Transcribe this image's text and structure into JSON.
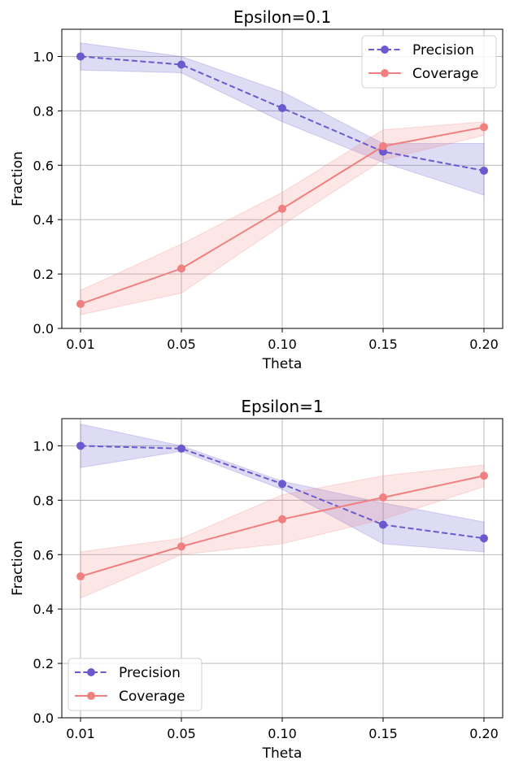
{
  "chart_data": [
    {
      "type": "line",
      "title": "Epsilon=0.1",
      "xlabel": "Theta",
      "ylabel": "Fraction",
      "categories": [
        "0.01",
        "0.05",
        "0.10",
        "0.15",
        "0.20"
      ],
      "ylim": [
        0,
        1.1
      ],
      "yticks": [
        "0.0",
        "0.2",
        "0.4",
        "0.6",
        "0.8",
        "1.0"
      ],
      "grid": true,
      "legend_position": "top-right",
      "series": [
        {
          "name": "Precision",
          "color": "#6a5acd",
          "style": "dashed",
          "values": [
            1.0,
            0.97,
            0.81,
            0.65,
            0.58
          ],
          "lower": [
            0.95,
            0.94,
            0.76,
            0.61,
            0.49
          ],
          "upper": [
            1.05,
            1.0,
            0.87,
            0.68,
            0.68
          ]
        },
        {
          "name": "Coverage",
          "color": "#f08080",
          "style": "solid",
          "values": [
            0.09,
            0.22,
            0.44,
            0.67,
            0.74
          ],
          "lower": [
            0.05,
            0.13,
            0.38,
            0.62,
            0.71
          ],
          "upper": [
            0.14,
            0.31,
            0.5,
            0.73,
            0.76
          ]
        }
      ]
    },
    {
      "type": "line",
      "title": "Epsilon=1",
      "xlabel": "Theta",
      "ylabel": "Fraction",
      "categories": [
        "0.01",
        "0.05",
        "0.10",
        "0.15",
        "0.20"
      ],
      "ylim": [
        0,
        1.1
      ],
      "yticks": [
        "0.0",
        "0.2",
        "0.4",
        "0.6",
        "0.8",
        "1.0"
      ],
      "grid": true,
      "legend_position": "bottom-left",
      "series": [
        {
          "name": "Precision",
          "color": "#6a5acd",
          "style": "dashed",
          "values": [
            1.0,
            0.99,
            0.86,
            0.71,
            0.66
          ],
          "lower": [
            0.92,
            0.98,
            0.84,
            0.64,
            0.61
          ],
          "upper": [
            1.08,
            1.0,
            0.87,
            0.79,
            0.72
          ]
        },
        {
          "name": "Coverage",
          "color": "#f08080",
          "style": "solid",
          "values": [
            0.52,
            0.63,
            0.73,
            0.81,
            0.89
          ],
          "lower": [
            0.44,
            0.6,
            0.64,
            0.73,
            0.85
          ],
          "upper": [
            0.61,
            0.66,
            0.82,
            0.89,
            0.93
          ]
        }
      ]
    }
  ]
}
